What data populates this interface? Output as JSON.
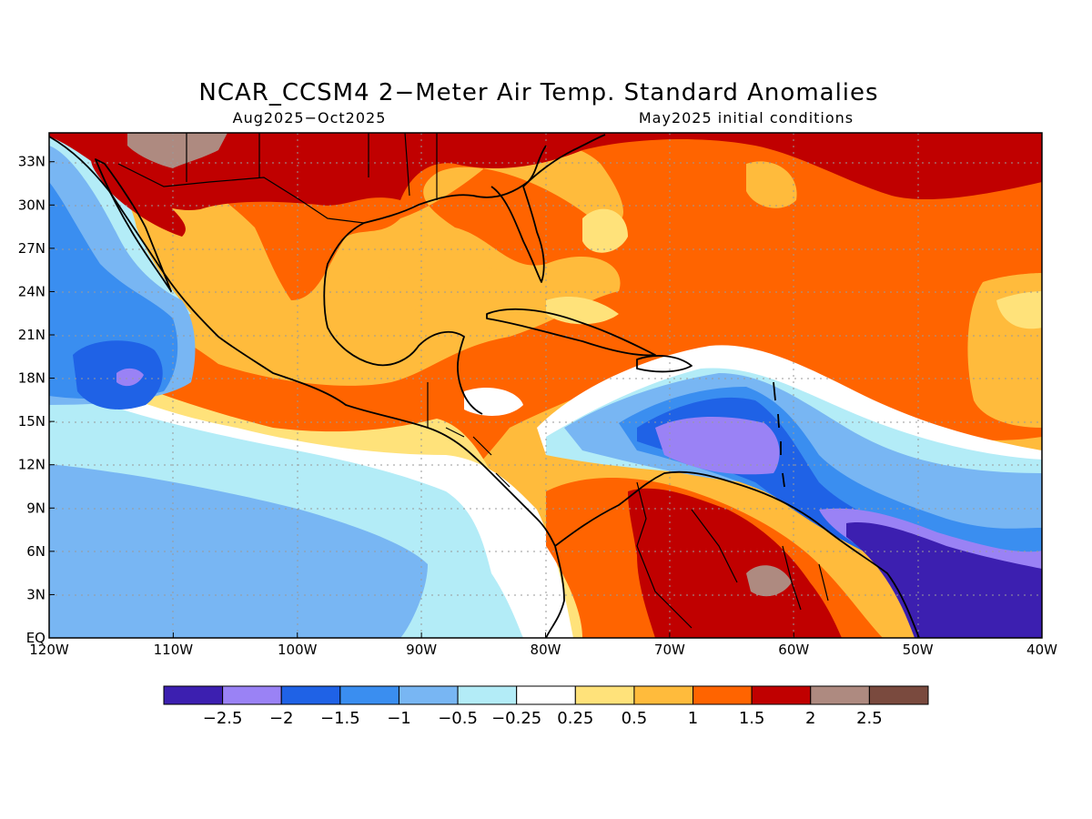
{
  "title": "NCAR_CCSM4 2−Meter Air Temp. Standard Anomalies",
  "subtitle_left": "Aug2025−Oct2025",
  "subtitle_right": "May2025 initial conditions",
  "map": {
    "lon_range": [
      -120,
      -40
    ],
    "lat_range": [
      0,
      35
    ],
    "lon_ticks": [
      {
        "value": -120,
        "label": "120W"
      },
      {
        "value": -110,
        "label": "110W"
      },
      {
        "value": -100,
        "label": "100W"
      },
      {
        "value": -90,
        "label": "90W"
      },
      {
        "value": -80,
        "label": "80W"
      },
      {
        "value": -70,
        "label": "70W"
      },
      {
        "value": -60,
        "label": "60W"
      },
      {
        "value": -50,
        "label": "50W"
      },
      {
        "value": -40,
        "label": "40W"
      }
    ],
    "lat_ticks": [
      {
        "value": 0,
        "label": "EQ"
      },
      {
        "value": 3,
        "label": "3N"
      },
      {
        "value": 6,
        "label": "6N"
      },
      {
        "value": 9,
        "label": "9N"
      },
      {
        "value": 12,
        "label": "12N"
      },
      {
        "value": 15,
        "label": "15N"
      },
      {
        "value": 18,
        "label": "18N"
      },
      {
        "value": 21,
        "label": "21N"
      },
      {
        "value": 24,
        "label": "24N"
      },
      {
        "value": 27,
        "label": "27N"
      },
      {
        "value": 30,
        "label": "30N"
      },
      {
        "value": 33,
        "label": "33N"
      }
    ],
    "gridlines": true
  },
  "colorbar": {
    "colors": [
      "#3c1fb0",
      "#9a82f5",
      "#1f62e6",
      "#3a8ef0",
      "#78b6f3",
      "#b3ecf7",
      "#ffffff",
      "#ffe27a",
      "#ffbb3c",
      "#ff6400",
      "#c00000",
      "#ae8a80",
      "#7a4a3e"
    ],
    "labels": [
      "−2.5",
      "−2",
      "−1.5",
      "−1",
      "−0.5",
      "−0.25",
      "0.25",
      "0.5",
      "1",
      "1.5",
      "2",
      "2.5"
    ]
  }
}
